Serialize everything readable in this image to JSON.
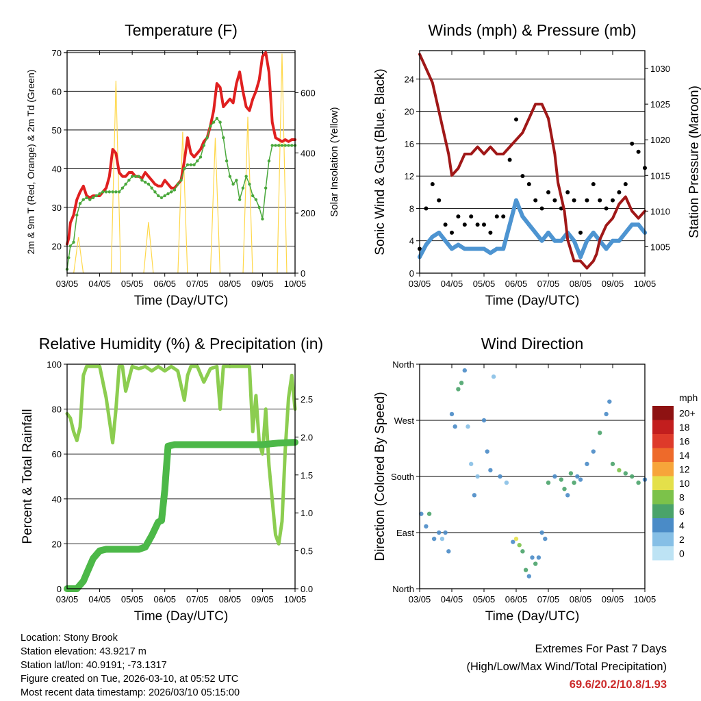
{
  "colors": {
    "temp_red": "#e02020",
    "temp_orange": "#ff8c1a",
    "dewpoint_green": "#4aa83c",
    "solar_yellow": "#ffd84a",
    "wind_black": "#000000",
    "wind_blue": "#4d94d1",
    "pressure_maroon": "#a01818",
    "rh_lightgreen": "#8ccd50",
    "precip_green": "#4cb848",
    "extremes_text": "#cc2b2b"
  },
  "chart_data": [
    {
      "id": "temperature",
      "type": "line",
      "title": "Temperature (F)",
      "xlabel": "Time (Day/UTC)",
      "ylabel": "2m & 9m T (Red, Orange) & 2m Td (Green)",
      "y2label": "Solar Insolation (Yellow)",
      "xticks": [
        "03/05",
        "04/05",
        "05/05",
        "06/05",
        "07/05",
        "08/05",
        "09/05",
        "10/05"
      ],
      "xlim": [
        0,
        7
      ],
      "ylim": [
        13,
        70.5
      ],
      "yticks": [
        20,
        30,
        40,
        50,
        60,
        70
      ],
      "y2lim": [
        0,
        740
      ],
      "y2ticks": [
        0,
        200,
        400,
        600
      ],
      "grid": true,
      "series": [
        {
          "name": "2m T",
          "color": "#e02020",
          "x": [
            0,
            0.05,
            0.1,
            0.2,
            0.3,
            0.4,
            0.5,
            0.6,
            0.7,
            0.8,
            0.9,
            1.0,
            1.1,
            1.2,
            1.3,
            1.4,
            1.5,
            1.6,
            1.7,
            1.8,
            1.9,
            2.0,
            2.1,
            2.2,
            2.3,
            2.4,
            2.5,
            2.6,
            2.7,
            2.8,
            2.9,
            3.0,
            3.1,
            3.2,
            3.3,
            3.4,
            3.5,
            3.6,
            3.7,
            3.8,
            3.9,
            4.0,
            4.1,
            4.2,
            4.3,
            4.4,
            4.5,
            4.6,
            4.7,
            4.8,
            4.9,
            5.0,
            5.1,
            5.2,
            5.3,
            5.4,
            5.5,
            5.6,
            5.7,
            5.8,
            5.9,
            6.0,
            6.1,
            6.2,
            6.3,
            6.4,
            6.5,
            6.6,
            6.7,
            6.8,
            6.9,
            7.0
          ],
          "values": [
            20.5,
            22,
            26,
            28,
            32,
            34,
            35.5,
            33,
            32.5,
            33,
            33,
            33,
            34,
            35,
            38,
            45,
            44,
            39,
            38,
            38,
            39,
            39,
            38,
            38,
            37.5,
            39,
            38,
            37,
            36,
            35.5,
            35.5,
            37,
            36,
            35,
            35,
            36,
            37,
            42,
            48,
            44,
            43,
            44,
            45,
            47,
            48,
            51,
            55,
            62,
            61,
            56,
            57,
            58,
            57,
            62,
            65,
            60,
            56,
            55,
            58,
            60,
            63,
            69,
            70,
            65,
            52,
            48,
            47.5,
            47,
            47.5,
            47,
            47.5,
            47.5
          ]
        },
        {
          "name": "2m Td",
          "color": "#4aa83c",
          "x": [
            0,
            0.05,
            0.1,
            0.2,
            0.3,
            0.4,
            0.5,
            0.6,
            0.7,
            0.8,
            0.9,
            1.0,
            1.1,
            1.2,
            1.3,
            1.4,
            1.5,
            1.6,
            1.7,
            1.8,
            1.9,
            2.0,
            2.1,
            2.2,
            2.3,
            2.4,
            2.5,
            2.6,
            2.7,
            2.8,
            2.9,
            3.0,
            3.1,
            3.2,
            3.3,
            3.4,
            3.5,
            3.6,
            3.7,
            3.8,
            3.9,
            4.0,
            4.1,
            4.2,
            4.3,
            4.4,
            4.5,
            4.6,
            4.7,
            4.8,
            4.9,
            5.0,
            5.1,
            5.2,
            5.3,
            5.4,
            5.5,
            5.6,
            5.7,
            5.8,
            5.9,
            6.0,
            6.1,
            6.2,
            6.3,
            6.4,
            6.5,
            6.6,
            6.7,
            6.8,
            6.9,
            7.0
          ],
          "values": [
            14,
            17,
            20,
            21,
            28,
            31,
            32,
            32.5,
            32,
            32.5,
            33,
            33.5,
            34,
            34,
            34,
            34,
            34,
            34,
            35,
            36,
            37,
            38,
            38,
            38,
            37,
            36.5,
            36,
            35,
            34,
            33,
            32.5,
            33,
            33.5,
            34,
            34.5,
            36,
            37,
            40,
            41,
            41,
            41,
            42,
            43,
            46,
            48,
            51,
            52,
            53,
            52,
            48,
            42,
            38,
            36,
            37,
            32,
            35,
            38,
            36,
            33,
            32,
            30,
            27,
            35,
            42,
            46,
            46,
            46,
            46,
            46,
            46,
            46,
            46
          ]
        }
      ],
      "solar_peaks": [
        {
          "x": 0.35,
          "value": 120
        },
        {
          "x": 1.5,
          "value": 640
        },
        {
          "x": 2.5,
          "value": 170
        },
        {
          "x": 3.55,
          "value": 470
        },
        {
          "x": 4.55,
          "value": 450
        },
        {
          "x": 5.55,
          "value": 520
        },
        {
          "x": 6.6,
          "value": 730
        }
      ]
    },
    {
      "id": "winds_pressure",
      "type": "scatter",
      "title": "Winds (mph) & Pressure (mb)",
      "xlabel": "Time (Day/UTC)",
      "ylabel": "Sonic Wind & Gust (Blue, Black)",
      "y2label": "Station Pressure (Maroon)",
      "xticks": [
        "03/05",
        "04/05",
        "05/05",
        "06/05",
        "07/05",
        "08/05",
        "09/05",
        "10/05"
      ],
      "xlim": [
        0,
        7
      ],
      "ylim": [
        0,
        27.5
      ],
      "yticks": [
        0,
        4,
        8,
        12,
        16,
        20,
        24
      ],
      "y2lim": [
        1001.3,
        1032.5
      ],
      "y2ticks": [
        1005,
        1010,
        1015,
        1020,
        1025,
        1030
      ],
      "grid": true,
      "series": [
        {
          "name": "Sonic Wind",
          "color": "#4d94d1",
          "x": [
            0,
            0.2,
            0.4,
            0.6,
            0.8,
            1.0,
            1.2,
            1.4,
            1.6,
            1.8,
            2.0,
            2.2,
            2.4,
            2.6,
            2.8,
            3.0,
            3.2,
            3.4,
            3.6,
            3.8,
            4.0,
            4.2,
            4.4,
            4.6,
            4.8,
            5.0,
            5.2,
            5.4,
            5.6,
            5.8,
            6.0,
            6.2,
            6.4,
            6.6,
            6.8,
            7.0
          ],
          "values": [
            2,
            3.5,
            4.5,
            5,
            4,
            3,
            3.5,
            3,
            3,
            3,
            3,
            2.5,
            3,
            3,
            6,
            9,
            7,
            6,
            5,
            4,
            5,
            4,
            4,
            5,
            4,
            2,
            4,
            5,
            4,
            3,
            4,
            4,
            5,
            6,
            6,
            5
          ]
        },
        {
          "name": "Gust",
          "color": "#000000",
          "x": [
            0,
            0.2,
            0.4,
            0.6,
            0.8,
            1.0,
            1.2,
            1.4,
            1.6,
            1.8,
            2.0,
            2.2,
            2.4,
            2.6,
            2.8,
            3.0,
            3.2,
            3.4,
            3.6,
            3.8,
            4.0,
            4.2,
            4.4,
            4.6,
            4.8,
            5.0,
            5.2,
            5.4,
            5.6,
            5.8,
            6.0,
            6.2,
            6.4,
            6.6,
            6.8,
            7.0
          ],
          "values": [
            3,
            8,
            11,
            9,
            6,
            5,
            7,
            6,
            7,
            6,
            6,
            5,
            7,
            7,
            14,
            19,
            12,
            11,
            9,
            8,
            10,
            9,
            8,
            10,
            9,
            5,
            9,
            11,
            9,
            8,
            9,
            10,
            11,
            16,
            15,
            13
          ]
        },
        {
          "name": "Station Pressure",
          "color": "#a01818",
          "x": [
            0,
            0.1,
            0.2,
            0.4,
            0.6,
            0.8,
            0.9,
            1.0,
            1.2,
            1.4,
            1.6,
            1.8,
            2.0,
            2.2,
            2.4,
            2.6,
            2.8,
            3.0,
            3.2,
            3.4,
            3.6,
            3.8,
            4.0,
            4.2,
            4.3,
            4.5,
            4.6,
            4.8,
            5.0,
            5.2,
            5.4,
            5.5,
            5.6,
            5.8,
            6.0,
            6.1,
            6.2,
            6.4,
            6.6,
            6.8,
            7.0
          ],
          "values": [
            1032,
            1031,
            1030,
            1028,
            1024,
            1020,
            1018,
            1015,
            1016,
            1018,
            1018,
            1019,
            1018,
            1019,
            1018,
            1018,
            1019,
            1020,
            1021,
            1023,
            1025,
            1025,
            1023,
            1018,
            1014,
            1010,
            1006,
            1003,
            1003,
            1002,
            1003,
            1004,
            1006,
            1008,
            1009,
            1010,
            1011,
            1012,
            1010,
            1009,
            1010
          ]
        }
      ]
    },
    {
      "id": "rh_precip",
      "type": "line",
      "title": "Relative Humidity (%) & Precipitation (in)",
      "xlabel": "Time (Day/UTC)",
      "ylabel": "Percent & Total Rainfall",
      "xticks": [
        "03/05",
        "04/05",
        "05/05",
        "06/05",
        "07/05",
        "08/05",
        "09/05",
        "10/05"
      ],
      "xlim": [
        0,
        7
      ],
      "ylim": [
        0,
        100
      ],
      "yticks": [
        0,
        20,
        40,
        60,
        80,
        100
      ],
      "y2lim": [
        0,
        2.96
      ],
      "y2ticks": [
        "0.0",
        "0.5",
        "1.0",
        "1.5",
        "2.0",
        "2.5"
      ],
      "grid": true,
      "series": [
        {
          "name": "RH",
          "color": "#8ccd50",
          "x": [
            0,
            0.1,
            0.2,
            0.3,
            0.4,
            0.5,
            0.6,
            0.7,
            0.8,
            1.0,
            1.2,
            1.4,
            1.5,
            1.6,
            1.7,
            1.8,
            2.0,
            2.2,
            2.4,
            2.6,
            2.8,
            3.0,
            3.2,
            3.4,
            3.6,
            3.7,
            3.8,
            3.9,
            4.0,
            4.2,
            4.4,
            4.6,
            4.7,
            4.8,
            4.9,
            5.0,
            5.2,
            5.4,
            5.6,
            5.7,
            5.8,
            5.9,
            6.0,
            6.1,
            6.2,
            6.4,
            6.5,
            6.6,
            6.7,
            6.8,
            6.9,
            7.0
          ],
          "values": [
            78,
            76,
            70,
            66,
            72,
            95,
            99,
            99,
            99,
            99,
            85,
            65,
            80,
            99,
            99,
            88,
            99,
            98,
            99,
            97,
            99,
            97,
            99,
            97,
            84,
            95,
            99,
            99,
            99,
            92,
            98,
            99,
            80,
            99,
            99,
            99,
            99,
            99,
            99,
            70,
            86,
            65,
            60,
            80,
            55,
            24,
            20,
            30,
            62,
            85,
            95,
            80
          ]
        },
        {
          "name": "Total Precip",
          "color": "#4cb848",
          "x": [
            0,
            0.3,
            0.5,
            0.6,
            0.7,
            0.8,
            1.0,
            1.2,
            1.5,
            1.7,
            2.0,
            2.2,
            2.4,
            2.6,
            2.8,
            2.9,
            3.0,
            3.05,
            3.1,
            3.3,
            4.0,
            4.5,
            5.0,
            5.5,
            6.0,
            6.5,
            7.0
          ],
          "values": [
            0,
            0,
            0.1,
            0.2,
            0.3,
            0.4,
            0.5,
            0.52,
            0.52,
            0.52,
            0.52,
            0.52,
            0.55,
            0.7,
            0.88,
            0.9,
            1.3,
            1.6,
            1.88,
            1.9,
            1.9,
            1.9,
            1.9,
            1.9,
            1.9,
            1.92,
            1.93
          ]
        }
      ]
    },
    {
      "id": "wind_direction",
      "type": "scatter",
      "title": "Wind Direction",
      "xlabel": "Time (Day/UTC)",
      "ylabel": "Direction (Colored By Speed)",
      "xticks": [
        "03/05",
        "04/05",
        "05/05",
        "06/05",
        "07/05",
        "08/05",
        "09/05",
        "10/05"
      ],
      "xlim": [
        0,
        7
      ],
      "ylim": [
        0,
        360
      ],
      "yticks": [
        "North",
        "East",
        "South",
        "West",
        "North"
      ],
      "ytick_values": [
        0,
        90,
        180,
        270,
        360
      ],
      "grid": true,
      "colorbar": {
        "unit": "mph",
        "labels": [
          "0",
          "2",
          "4",
          "6",
          "8",
          "10",
          "12",
          "14",
          "16",
          "18",
          "20+"
        ],
        "colors": [
          "#bde3f4",
          "#86bfe6",
          "#4a8bc7",
          "#4aa36a",
          "#7cc24a",
          "#e4e04a",
          "#f7a53a",
          "#ee6a2a",
          "#de3a2a",
          "#c21e1e",
          "#8e1212"
        ]
      },
      "series": [
        {
          "name": "Direction",
          "x": [
            0.05,
            0.2,
            0.3,
            0.45,
            0.6,
            0.7,
            0.8,
            0.9,
            1.0,
            1.1,
            1.2,
            1.3,
            1.4,
            1.5,
            1.6,
            1.7,
            1.8,
            2.0,
            2.1,
            2.2,
            2.3,
            2.5,
            2.7,
            2.9,
            3.0,
            3.1,
            3.2,
            3.3,
            3.4,
            3.5,
            3.6,
            3.7,
            3.8,
            3.9,
            4.0,
            4.2,
            4.4,
            4.5,
            4.6,
            4.7,
            4.8,
            4.9,
            5.0,
            5.2,
            5.4,
            5.6,
            5.8,
            5.9,
            6.0,
            6.2,
            6.4,
            6.6,
            6.8,
            7.0
          ],
          "values": [
            120,
            100,
            120,
            80,
            90,
            80,
            90,
            60,
            280,
            260,
            320,
            330,
            350,
            260,
            200,
            150,
            180,
            270,
            220,
            190,
            340,
            180,
            170,
            75,
            80,
            70,
            60,
            30,
            20,
            50,
            40,
            50,
            90,
            80,
            170,
            180,
            175,
            160,
            150,
            185,
            170,
            180,
            175,
            200,
            220,
            250,
            280,
            300,
            200,
            190,
            185,
            180,
            170,
            175
          ],
          "speed": [
            3,
            3,
            6,
            4,
            3,
            2,
            4,
            3,
            4,
            4,
            6,
            5,
            3,
            2,
            2,
            3,
            2,
            3,
            3,
            3,
            2,
            3,
            2,
            4,
            9,
            7,
            6,
            5,
            4,
            4,
            5,
            4,
            4,
            3,
            5,
            4,
            6,
            5,
            4,
            5,
            6,
            4,
            4,
            4,
            4,
            5,
            4,
            3,
            6,
            7,
            6,
            5,
            5,
            4
          ]
        }
      ]
    }
  ],
  "info": {
    "location": "Location: Stony Brook",
    "elevation": "Station elevation: 43.9217 m",
    "latlon": "Station lat/lon: 40.9191; -73.1317",
    "created": "Figure created on Tue, 2026-03-10, at 05:52 UTC",
    "recent": "Most recent data timestamp: 2026/03/10 05:15:00"
  },
  "extremes": {
    "line1": "Extremes For Past 7 Days",
    "line2": "(High/Low/Max Wind/Total Precipitation)",
    "values": "69.6/20.2/10.8/1.93"
  }
}
